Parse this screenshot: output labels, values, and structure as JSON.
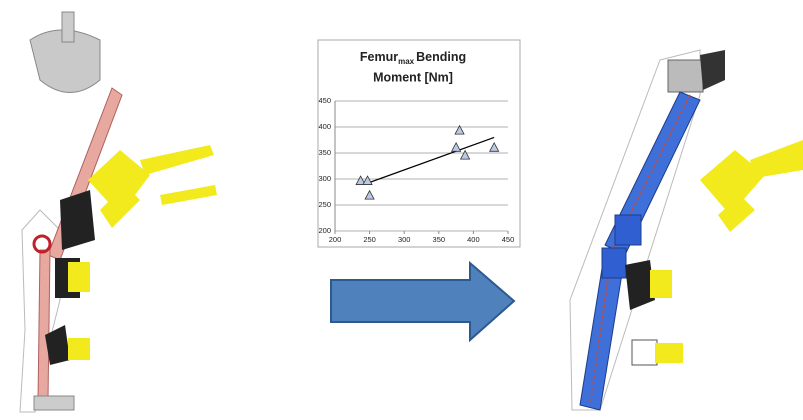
{
  "chart_data": {
    "type": "scatter",
    "title_parts": [
      "Femur",
      "max",
      "Bending",
      "Moment [Nm]"
    ],
    "x": [
      237,
      247,
      250,
      375,
      380,
      388,
      430
    ],
    "values": [
      296,
      296,
      268,
      360,
      393,
      345,
      360
    ],
    "color": "#b9c9e6",
    "trendline": {
      "x": [
        245,
        430
      ],
      "y": [
        291,
        380
      ]
    },
    "xlim": [
      200,
      450
    ],
    "xticks": [
      200,
      250,
      300,
      350,
      400,
      450
    ],
    "ylim": [
      200,
      450
    ],
    "yticks": [
      200,
      250,
      300,
      350,
      400,
      450
    ],
    "grid": true
  }
}
